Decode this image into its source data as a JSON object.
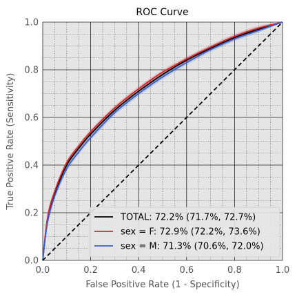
{
  "chart_data": {
    "type": "line",
    "title": "ROC Curve",
    "xlabel": "False Positive Rate (1 - Specificity)",
    "ylabel": "True Positive Rate (Sensitivity)",
    "xlim": [
      0.0,
      1.0
    ],
    "ylim": [
      0.0,
      1.0
    ],
    "x_ticks": [
      0.0,
      0.2,
      0.4,
      0.6,
      0.8,
      1.0
    ],
    "y_ticks": [
      0.0,
      0.2,
      0.4,
      0.6,
      0.8,
      1.0
    ],
    "x_tick_labels": [
      "0.0",
      "0.2",
      "0.4",
      "0.6",
      "0.8",
      "1.0"
    ],
    "y_tick_labels": [
      "0.0",
      "0.2",
      "0.4",
      "0.6",
      "0.8",
      "1.0"
    ],
    "grid": true,
    "minor_grid": true,
    "legend_position": "lower-right",
    "background": "#e5e5e5",
    "series": [
      {
        "name": "TOTAL: 72.2% (71.7%, 72.7%)",
        "color": "#000000",
        "x": [
          0.0,
          0.02,
          0.05,
          0.1,
          0.15,
          0.2,
          0.3,
          0.4,
          0.5,
          0.6,
          0.7,
          0.8,
          0.9,
          1.0
        ],
        "y": [
          0.0,
          0.17,
          0.28,
          0.4,
          0.47,
          0.53,
          0.63,
          0.71,
          0.78,
          0.84,
          0.89,
          0.935,
          0.97,
          1.0
        ]
      },
      {
        "name": "sex = F: 72.9% (72.2%, 73.6%)",
        "color": "#d62728",
        "x": [
          0.0,
          0.02,
          0.05,
          0.1,
          0.15,
          0.2,
          0.3,
          0.4,
          0.5,
          0.6,
          0.7,
          0.8,
          0.9,
          1.0
        ],
        "y": [
          0.0,
          0.18,
          0.29,
          0.41,
          0.48,
          0.54,
          0.64,
          0.72,
          0.79,
          0.845,
          0.895,
          0.94,
          0.975,
          1.0
        ]
      },
      {
        "name": "sex = M: 71.3% (70.6%, 72.0%)",
        "color": "#3a5fcd",
        "x": [
          0.0,
          0.02,
          0.05,
          0.1,
          0.15,
          0.2,
          0.3,
          0.4,
          0.5,
          0.6,
          0.7,
          0.8,
          0.9,
          1.0
        ],
        "y": [
          0.0,
          0.16,
          0.27,
          0.385,
          0.455,
          0.515,
          0.62,
          0.7,
          0.77,
          0.83,
          0.885,
          0.93,
          0.965,
          1.0
        ]
      }
    ],
    "reference_line": {
      "x": [
        0.0,
        1.0
      ],
      "y": [
        0.0,
        1.0
      ],
      "style": "dashed",
      "color": "#000000"
    }
  }
}
